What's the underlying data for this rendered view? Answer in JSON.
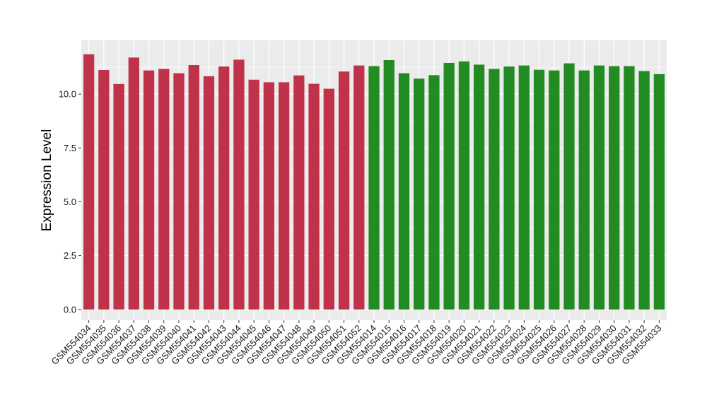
{
  "chart_data": {
    "type": "bar",
    "title": "",
    "xlabel": "",
    "ylabel": "Expression Level",
    "ylim": [
      -0.5,
      12.5
    ],
    "yticks": [
      0.0,
      2.5,
      5.0,
      7.5,
      10.0
    ],
    "ytick_labels": [
      "0.0",
      "2.5",
      "5.0",
      "7.5",
      "10.0"
    ],
    "grid": true,
    "legend": "none",
    "categories": [
      "GSM554034",
      "GSM554035",
      "GSM554036",
      "GSM554037",
      "GSM554038",
      "GSM554039",
      "GSM554040",
      "GSM554041",
      "GSM554042",
      "GSM554043",
      "GSM554044",
      "GSM554045",
      "GSM554046",
      "GSM554047",
      "GSM554048",
      "GSM554049",
      "GSM554050",
      "GSM554051",
      "GSM554052",
      "GSM554014",
      "GSM554015",
      "GSM554016",
      "GSM554017",
      "GSM554018",
      "GSM554019",
      "GSM554020",
      "GSM554021",
      "GSM554022",
      "GSM554023",
      "GSM554024",
      "GSM554025",
      "GSM554026",
      "GSM554027",
      "GSM554028",
      "GSM554029",
      "GSM554030",
      "GSM554031",
      "GSM554032",
      "GSM554033"
    ],
    "values": [
      11.85,
      11.12,
      10.47,
      11.7,
      11.1,
      11.17,
      10.97,
      11.35,
      10.83,
      11.28,
      11.6,
      10.67,
      10.55,
      10.55,
      10.87,
      10.48,
      10.25,
      11.05,
      11.33,
      11.3,
      11.58,
      10.97,
      10.72,
      10.88,
      11.45,
      11.52,
      11.37,
      11.17,
      11.28,
      11.33,
      11.13,
      11.1,
      11.43,
      11.1,
      11.33,
      11.3,
      11.3,
      11.07,
      10.93
    ],
    "group_colors": [
      "#C0314A",
      "#C0314A",
      "#C0314A",
      "#C0314A",
      "#C0314A",
      "#C0314A",
      "#C0314A",
      "#C0314A",
      "#C0314A",
      "#C0314A",
      "#C0314A",
      "#C0314A",
      "#C0314A",
      "#C0314A",
      "#C0314A",
      "#C0314A",
      "#C0314A",
      "#C0314A",
      "#C0314A",
      "#228B22",
      "#228B22",
      "#228B22",
      "#228B22",
      "#228B22",
      "#228B22",
      "#228B22",
      "#228B22",
      "#228B22",
      "#228B22",
      "#228B22",
      "#228B22",
      "#228B22",
      "#228B22",
      "#228B22",
      "#228B22",
      "#228B22",
      "#228B22",
      "#228B22",
      "#228B22"
    ],
    "panel_color": "#EBEBEB",
    "grid_color": "#FFFFFF"
  }
}
